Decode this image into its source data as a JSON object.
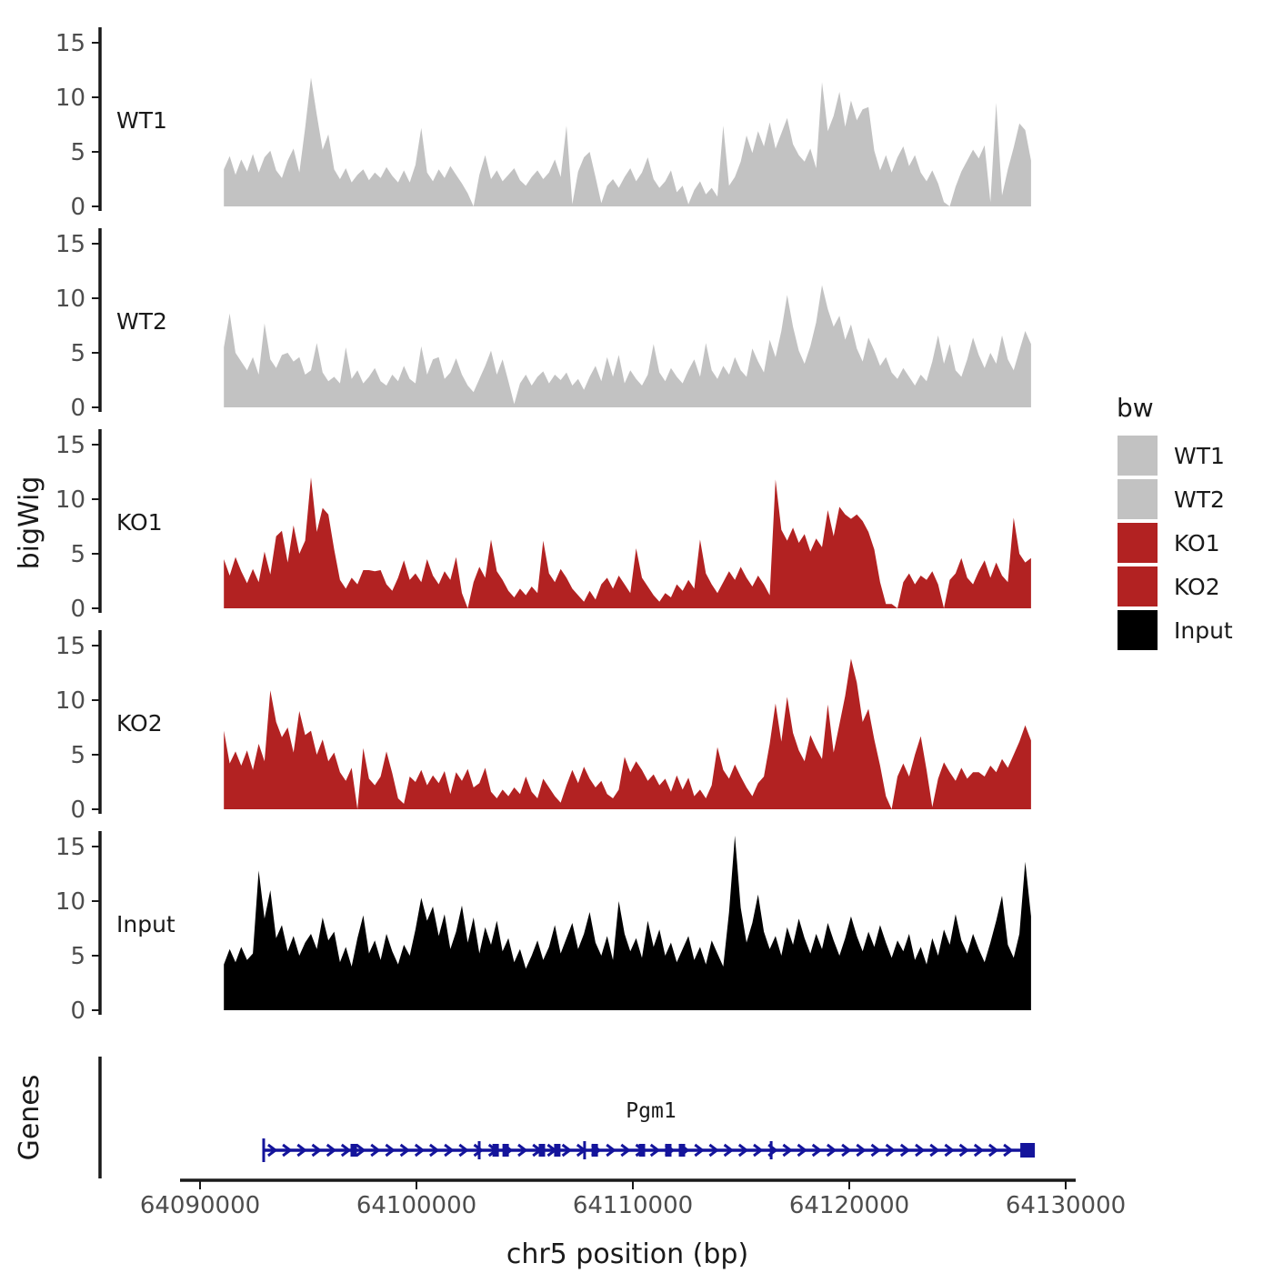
{
  "figure": {
    "background": "#ffffff",
    "axis_color": "#1a1a1a",
    "tick_label_color": "#4d4d4d",
    "text_color": "#1a1a1a"
  },
  "chart_data": {
    "type": "area",
    "title": "",
    "xlabel": "chr5 position (bp)",
    "ylabel": "bigWig",
    "grid": false,
    "x_axis_range_bp": [
      64089100,
      64130500
    ],
    "x_ticks": [
      64090000,
      64100000,
      64110000,
      64120000,
      64130000
    ],
    "x_tick_labels": [
      "64090000",
      "64100000",
      "64110000",
      "64120000",
      "64130000"
    ],
    "y_ticks": [
      0,
      5,
      10,
      15
    ],
    "y_tick_labels": [
      "0",
      "5",
      "10",
      "15"
    ],
    "ylim": [
      0,
      16
    ],
    "data_start_bp": 64091100,
    "data_end_bp": 64128400,
    "series": [
      {
        "name": "WT1",
        "color": "#c2c2c2",
        "values": [
          3.4,
          4.6,
          2.9,
          4.3,
          3.2,
          4.8,
          3.1,
          4.5,
          5.1,
          3.3,
          2.6,
          4.2,
          5.3,
          3.1,
          7.2,
          11.8,
          8.4,
          5.2,
          6.6,
          3.4,
          2.5,
          3.5,
          2.2,
          2.9,
          3.4,
          2.4,
          3.1,
          2.6,
          3.6,
          2.8,
          2.2,
          3.3,
          2.2,
          3.8,
          7.2,
          3.1,
          2.3,
          3.4,
          2.6,
          3.7,
          2.9,
          2.1,
          1.2,
          0.0,
          2.9,
          4.7,
          2.5,
          3.3,
          2.3,
          2.9,
          3.5,
          2.4,
          1.9,
          2.7,
          3.3,
          2.5,
          3.1,
          4.3,
          2.7,
          7.4,
          0.2,
          3.2,
          4.5,
          5.0,
          2.7,
          0.3,
          1.9,
          2.5,
          1.7,
          2.7,
          3.5,
          2.3,
          3.1,
          4.5,
          2.5,
          1.7,
          2.3,
          3.3,
          1.3,
          1.9,
          0.2,
          1.5,
          2.3,
          1.1,
          1.7,
          0.9,
          7.4,
          1.9,
          2.7,
          4.1,
          6.5,
          4.9,
          6.9,
          5.5,
          7.7,
          5.3,
          6.7,
          8.1,
          5.7,
          4.7,
          4.1,
          5.3,
          3.5,
          11.4,
          6.9,
          8.3,
          10.5,
          7.3,
          9.7,
          7.9,
          8.9,
          9.1,
          5.1,
          3.3,
          4.7,
          3.1,
          4.5,
          5.5,
          3.7,
          4.7,
          3.1,
          2.3,
          3.3,
          2.1,
          0.4,
          0.0,
          1.8,
          3.2,
          4.2,
          5.2,
          4.4,
          5.6,
          0.4,
          9.5,
          1.0,
          3.4,
          5.4,
          7.6,
          7.0,
          4.2
        ]
      },
      {
        "name": "WT2",
        "color": "#c2c2c2",
        "values": [
          5.5,
          8.6,
          5.0,
          4.2,
          3.4,
          4.6,
          3.0,
          7.7,
          4.4,
          3.6,
          4.8,
          5.0,
          4.2,
          4.6,
          3.0,
          3.4,
          5.9,
          3.2,
          2.4,
          2.8,
          2.2,
          5.5,
          2.6,
          3.4,
          2.2,
          2.8,
          3.6,
          2.4,
          2.0,
          3.0,
          2.4,
          3.8,
          2.6,
          2.2,
          5.6,
          3.0,
          4.4,
          4.6,
          2.6,
          3.2,
          4.5,
          3.0,
          2.0,
          1.4,
          2.6,
          3.8,
          5.2,
          3.0,
          4.4,
          2.4,
          0.3,
          2.2,
          3.0,
          2.0,
          2.8,
          3.3,
          2.2,
          3.0,
          2.5,
          3.2,
          2.0,
          2.6,
          1.6,
          2.8,
          3.8,
          2.4,
          4.6,
          2.8,
          4.8,
          2.2,
          3.4,
          2.6,
          2.0,
          3.0,
          5.8,
          3.2,
          2.4,
          3.6,
          2.8,
          2.2,
          3.4,
          4.4,
          2.8,
          5.9,
          3.4,
          2.6,
          3.8,
          3.0,
          4.6,
          3.4,
          2.8,
          5.4,
          4.2,
          3.2,
          6.2,
          4.6,
          7.0,
          10.3,
          7.4,
          5.2,
          4.0,
          5.6,
          7.8,
          11.2,
          9.0,
          7.4,
          8.4,
          6.2,
          7.6,
          5.4,
          4.2,
          6.4,
          5.2,
          3.8,
          4.6,
          3.2,
          2.6,
          3.6,
          2.8,
          2.0,
          3.0,
          2.4,
          4.2,
          6.6,
          4.0,
          5.8,
          3.4,
          2.8,
          4.4,
          6.4,
          4.8,
          3.6,
          5.0,
          4.0,
          6.6,
          4.4,
          3.4,
          5.2,
          7.0,
          5.8
        ]
      },
      {
        "name": "KO1",
        "color": "#b22222",
        "values": [
          4.5,
          3.0,
          4.7,
          3.4,
          2.3,
          3.6,
          2.4,
          5.2,
          3.1,
          6.6,
          7.1,
          4.2,
          7.6,
          5.0,
          6.2,
          12.0,
          7.0,
          9.2,
          8.6,
          5.4,
          2.6,
          1.8,
          2.8,
          2.2,
          3.5,
          3.5,
          3.4,
          3.5,
          2.2,
          1.6,
          2.8,
          4.4,
          2.6,
          3.2,
          2.4,
          4.5,
          3.0,
          2.2,
          3.4,
          2.6,
          4.7,
          1.4,
          0.0,
          2.4,
          3.8,
          2.8,
          6.3,
          3.4,
          2.6,
          1.6,
          1.0,
          1.8,
          1.2,
          2.0,
          1.4,
          6.2,
          3.2,
          2.4,
          3.6,
          2.8,
          1.8,
          1.2,
          0.6,
          1.6,
          0.8,
          2.2,
          2.8,
          1.8,
          3.0,
          2.2,
          1.4,
          5.5,
          2.8,
          2.0,
          1.2,
          0.6,
          1.4,
          1.0,
          2.2,
          1.6,
          2.6,
          1.8,
          6.3,
          3.2,
          2.2,
          1.4,
          2.4,
          3.4,
          2.6,
          3.8,
          2.8,
          2.0,
          3.0,
          2.2,
          1.2,
          11.8,
          7.2,
          6.2,
          7.4,
          6.0,
          6.8,
          5.2,
          6.4,
          5.6,
          9.0,
          6.6,
          9.3,
          8.6,
          8.2,
          8.6,
          8.0,
          7.0,
          5.4,
          2.4,
          0.4,
          0.4,
          0.0,
          2.4,
          3.2,
          2.2,
          3.0,
          2.6,
          3.4,
          2.2,
          0.0,
          2.6,
          3.2,
          4.6,
          2.8,
          2.2,
          3.4,
          4.4,
          2.8,
          4.2,
          3.0,
          2.4,
          8.3,
          5.0,
          4.2,
          4.6
        ]
      },
      {
        "name": "KO2",
        "color": "#b22222",
        "values": [
          7.2,
          4.2,
          5.3,
          4.0,
          5.4,
          3.6,
          6.0,
          4.4,
          10.9,
          8.0,
          6.6,
          7.5,
          5.2,
          9.0,
          6.8,
          7.2,
          5.0,
          6.4,
          4.4,
          5.2,
          3.4,
          2.6,
          3.8,
          0.0,
          5.6,
          2.8,
          2.2,
          3.0,
          5.3,
          3.3,
          1.0,
          0.5,
          3.0,
          2.5,
          3.6,
          2.2,
          3.1,
          2.4,
          3.5,
          1.4,
          3.4,
          2.6,
          3.7,
          2.0,
          2.4,
          3.8,
          1.6,
          1.0,
          1.8,
          1.2,
          2.0,
          1.4,
          3.0,
          1.6,
          1.0,
          2.8,
          2.0,
          1.2,
          0.6,
          2.2,
          3.6,
          2.4,
          3.9,
          2.8,
          2.0,
          2.6,
          1.4,
          1.0,
          1.8,
          4.8,
          3.4,
          4.4,
          3.6,
          2.6,
          3.2,
          2.2,
          2.8,
          1.6,
          3.1,
          1.8,
          2.9,
          1.2,
          1.8,
          1.0,
          2.2,
          5.7,
          3.6,
          2.8,
          4.1,
          3.0,
          2.0,
          1.2,
          2.4,
          3.0,
          6.0,
          9.7,
          6.2,
          10.3,
          7.0,
          5.4,
          4.4,
          6.8,
          5.6,
          4.6,
          9.6,
          5.2,
          7.8,
          10.4,
          13.8,
          11.6,
          8.0,
          9.2,
          6.4,
          4.0,
          1.2,
          0.0,
          3.0,
          4.2,
          3.0,
          5.0,
          6.7,
          3.6,
          0.2,
          2.8,
          4.3,
          3.4,
          2.6,
          3.8,
          2.8,
          3.4,
          3.4,
          3.0,
          4.0,
          3.4,
          4.6,
          3.8,
          5.0,
          6.2,
          7.7,
          6.3
        ]
      },
      {
        "name": "Input",
        "color": "#000000",
        "values": [
          4.2,
          5.6,
          4.4,
          5.8,
          4.6,
          5.2,
          12.8,
          8.4,
          11.0,
          6.6,
          7.8,
          5.4,
          6.8,
          5.0,
          6.2,
          7.0,
          5.6,
          8.5,
          6.4,
          7.2,
          4.4,
          5.8,
          4.0,
          6.6,
          8.7,
          5.2,
          6.4,
          4.6,
          7.0,
          5.4,
          4.2,
          6.0,
          5.0,
          7.4,
          10.3,
          8.2,
          9.5,
          6.8,
          8.8,
          5.6,
          7.2,
          9.6,
          6.2,
          8.5,
          5.2,
          7.6,
          6.0,
          8.2,
          5.4,
          6.6,
          4.4,
          5.6,
          3.8,
          5.0,
          6.4,
          4.6,
          5.8,
          7.8,
          5.2,
          6.6,
          8.0,
          5.6,
          7.0,
          9.0,
          6.2,
          5.0,
          6.8,
          4.6,
          10.0,
          7.0,
          5.4,
          6.6,
          4.8,
          8.2,
          5.8,
          7.4,
          5.0,
          6.2,
          4.4,
          5.6,
          6.8,
          4.6,
          5.8,
          4.2,
          6.4,
          5.2,
          4.0,
          9.0,
          16.0,
          9.4,
          6.2,
          8.0,
          10.6,
          7.2,
          5.6,
          6.8,
          5.0,
          7.6,
          6.0,
          8.4,
          6.6,
          5.2,
          7.0,
          5.6,
          8.0,
          6.4,
          5.0,
          6.6,
          8.6,
          6.8,
          5.4,
          7.2,
          5.8,
          7.8,
          6.2,
          4.8,
          6.4,
          5.4,
          7.0,
          4.6,
          5.8,
          4.2,
          6.6,
          5.0,
          7.4,
          6.0,
          8.8,
          6.4,
          5.2,
          7.0,
          5.6,
          4.4,
          6.2,
          8.2,
          10.5,
          6.0,
          4.8,
          7.0,
          13.6,
          8.6
        ]
      }
    ],
    "legend": {
      "title": "bw",
      "position": "right",
      "entries": [
        {
          "label": "WT1",
          "color": "#c2c2c2"
        },
        {
          "label": "WT2",
          "color": "#c2c2c2"
        },
        {
          "label": "KO1",
          "color": "#b22222"
        },
        {
          "label": "KO2",
          "color": "#b22222"
        },
        {
          "label": "Input",
          "color": "#000000"
        }
      ]
    },
    "gene_track": {
      "panel_label": "Genes",
      "gene": {
        "name": "Pgm1",
        "color": "#14149b",
        "strand": "+",
        "start_bp": 64092940,
        "end_bp": 64128570,
        "label_bp": 64110800,
        "exon_boxes_bp": [
          64097100,
          64103660,
          64104120,
          64105800,
          64106510,
          64108240,
          64110420,
          64111640,
          64112270
        ],
        "exon_bars_bp": [
          64102900,
          64107770,
          64116390
        ],
        "end_box_bp": 64128240,
        "arrow_start_bp": 64093400,
        "arrow_end_bp": 64127400,
        "arrow_step_bp": 680
      }
    }
  }
}
